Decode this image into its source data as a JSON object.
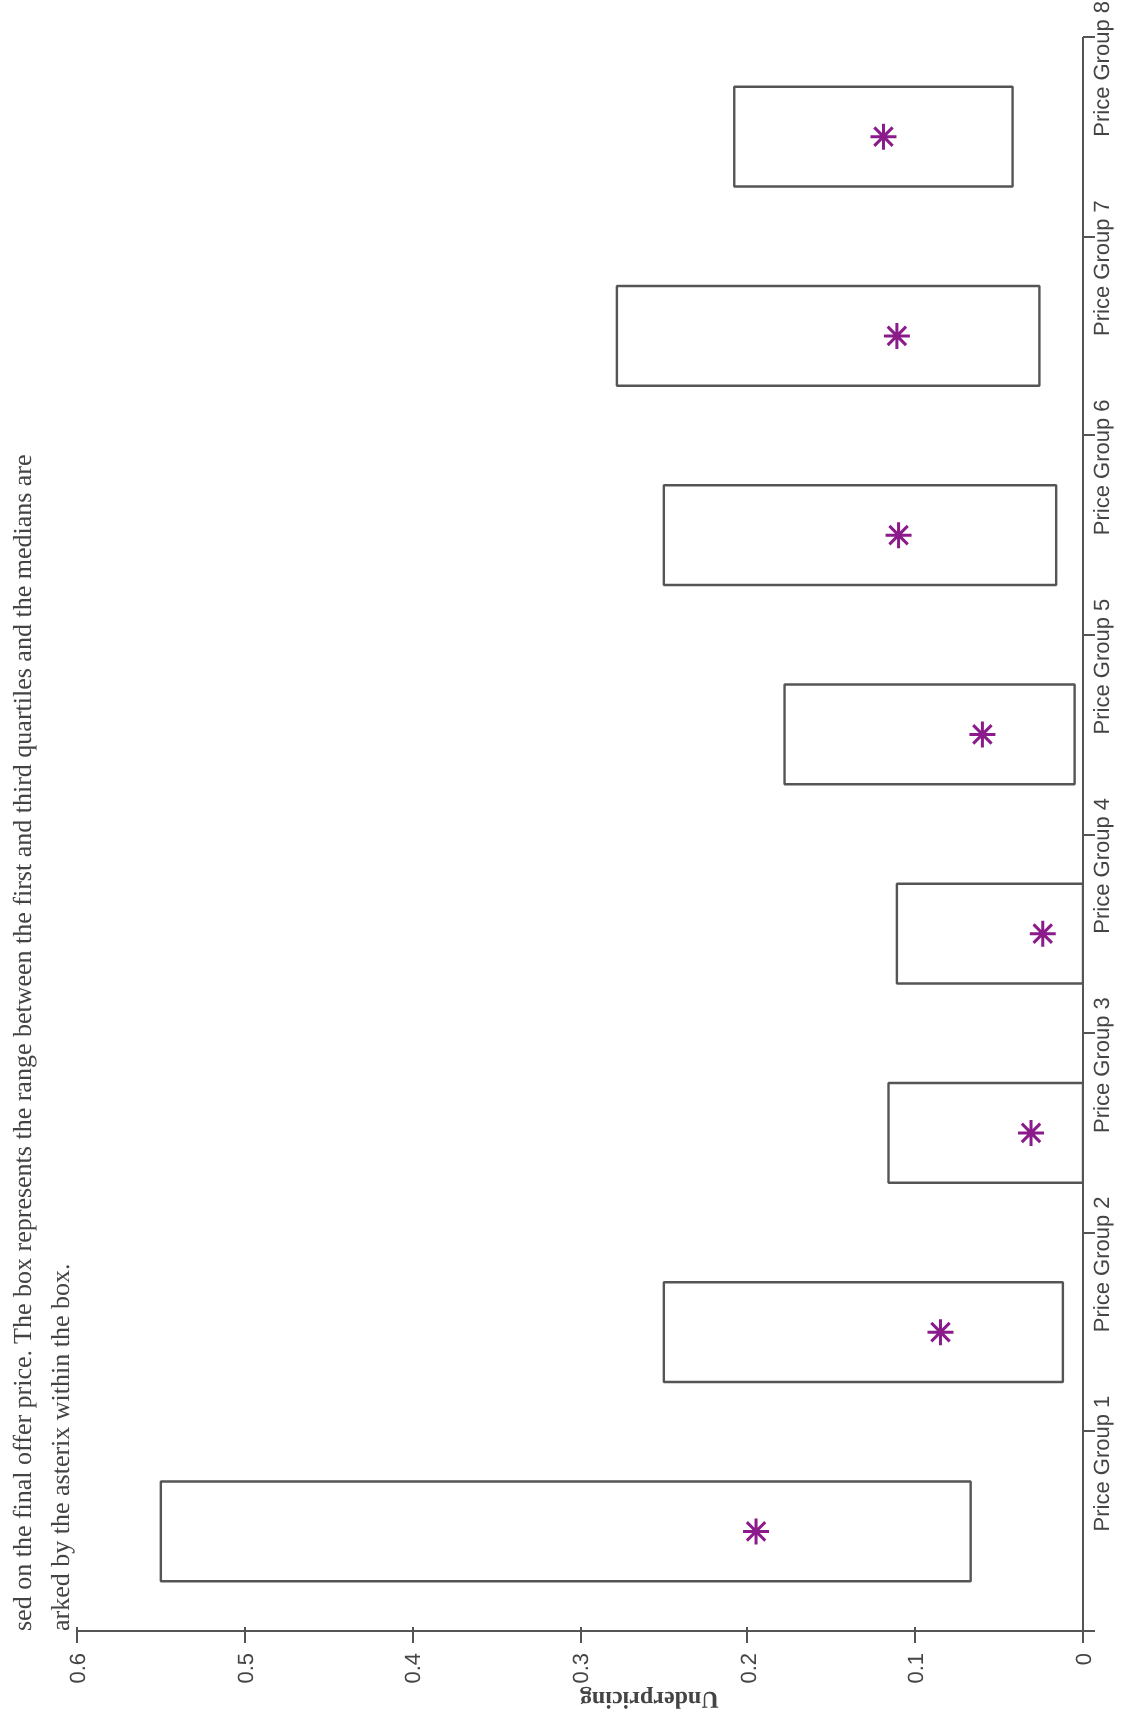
{
  "chart_data": {
    "type": "box",
    "orientation": "horizontal",
    "annotations": [
      "sed on the final offer price. The box represents the range between the first and third quartiles and the medians are",
      "arked by the asterix within the box."
    ],
    "xlabel": "Underpricing",
    "categories": [
      "Price Group 8",
      "Price Group 7",
      "Price Group 6",
      "Price Group 5",
      "Price Group 4",
      "Price Group 3",
      "Price Group 2",
      "Price Group 1"
    ],
    "series": [
      {
        "color": "#555555",
        "boxes": [
          {
            "low": 0.042,
            "q1": 0.042,
            "q3": 0.208,
            "high": 0.208
          },
          {
            "low": 0.026,
            "q1": 0.026,
            "q3": 0.278,
            "high": 0.278
          },
          {
            "low": 0.016,
            "q1": 0.016,
            "q3": 0.25,
            "high": 0.25
          },
          {
            "low": 0.005,
            "q1": 0.005,
            "q3": 0.178,
            "high": 0.178
          },
          {
            "low": 0.0,
            "q1": 0.0,
            "q3": 0.111,
            "high": 0.111
          },
          {
            "low": 0.0,
            "q1": 0.0,
            "q3": 0.116,
            "high": 0.116
          },
          {
            "low": 0.012,
            "q1": 0.012,
            "q3": 0.25,
            "high": 0.25
          },
          {
            "low": 0.067,
            "q1": 0.067,
            "q3": 0.55,
            "high": 0.55
          }
        ]
      },
      {
        "type": "scatter",
        "color": "#8b1a8b",
        "x": [
          "Price Group 8",
          "Price Group 7",
          "Price Group 6",
          "Price Group 5",
          "Price Group 4",
          "Price Group 3",
          "Price Group 2",
          "Price Group 1"
        ],
        "values": [
          0.119,
          0.111,
          0.11,
          0.06,
          0.024,
          0.031,
          0.085,
          0.195
        ]
      }
    ],
    "xlim": [
      0.6,
      0
    ],
    "xticks": [
      0.6,
      0.5,
      0.4,
      0.3,
      0.2,
      0.1,
      0
    ],
    "marker": "cross",
    "grid": false
  }
}
